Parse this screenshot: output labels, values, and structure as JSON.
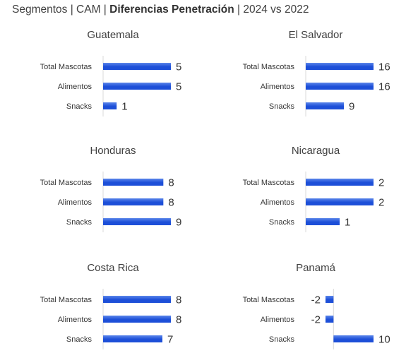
{
  "header": {
    "prefix": "Segmentos | CAM | ",
    "bold": "Diferencias Penetración",
    "suffix": " | 2024 vs 2022"
  },
  "colors": {
    "bar": "#1d4fd8",
    "bar_light": "#5b86ea",
    "axis": "#d9d9d9",
    "label": "#333333",
    "value": "#333333"
  },
  "chart_data": [
    {
      "type": "bar",
      "orientation": "horizontal",
      "title": "Guatemala",
      "categories": [
        "Total Mascotas",
        "Alimentos",
        "Snacks"
      ],
      "values": [
        5,
        5,
        1
      ]
    },
    {
      "type": "bar",
      "orientation": "horizontal",
      "title": "El Salvador",
      "categories": [
        "Total Mascotas",
        "Alimentos",
        "Snacks"
      ],
      "values": [
        16,
        16,
        9
      ]
    },
    {
      "type": "bar",
      "orientation": "horizontal",
      "title": "Honduras",
      "categories": [
        "Total Mascotas",
        "Alimentos",
        "Snacks"
      ],
      "values": [
        8,
        8,
        9
      ]
    },
    {
      "type": "bar",
      "orientation": "horizontal",
      "title": "Nicaragua",
      "categories": [
        "Total Mascotas",
        "Alimentos",
        "Snacks"
      ],
      "values": [
        2,
        2,
        1
      ]
    },
    {
      "type": "bar",
      "orientation": "horizontal",
      "title": "Costa Rica",
      "categories": [
        "Total Mascotas",
        "Alimentos",
        "Snacks"
      ],
      "values": [
        8,
        8,
        7
      ]
    },
    {
      "type": "bar",
      "orientation": "horizontal",
      "title": "Panamá",
      "categories": [
        "Total Mascotas",
        "Alimentos",
        "Snacks"
      ],
      "values": [
        -2,
        -2,
        10
      ]
    }
  ]
}
